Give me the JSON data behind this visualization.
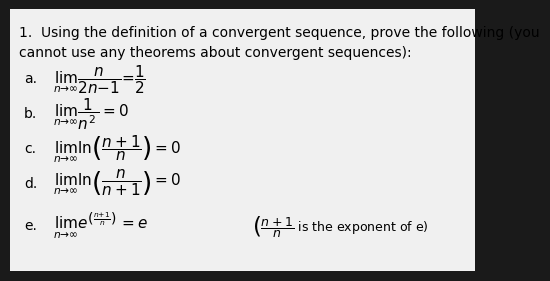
{
  "bg_color": "#1a1a1a",
  "text_color": "#000000",
  "panel_color": "#f0f0f0",
  "title_line1": "1.  Using the definition of a convergent sequence, prove the following (you",
  "title_line2": "cannot use any theorems about convergent sequences):",
  "items": [
    {
      "label": "a.",
      "math": "$\\lim_{n \\to \\infty} \\dfrac{n}{2n-1} = \\dfrac{1}{2}$"
    },
    {
      "label": "b.",
      "math": "$\\lim_{n \\to \\infty} \\dfrac{1}{n^2} = 0$"
    },
    {
      "label": "c.",
      "math": "$\\lim_{n \\to \\infty} \\ln\\!\\left(\\dfrac{n+1}{n}\\right) = 0$"
    },
    {
      "label": "d.",
      "math": "$\\lim_{n \\to \\infty} \\ln\\!\\left(\\dfrac{n}{n+1}\\right) = 0$"
    },
    {
      "label": "e.",
      "math": "$\\lim_{n \\to \\infty} e^{\\left(\\frac{n+1}{n}\\right)} = e$",
      "note": "$\\left(\\dfrac{n+1}{n}\\text{ is the exponent of e}\\right)$"
    }
  ],
  "font_size_title": 10,
  "font_size_math": 11,
  "font_size_note": 9
}
